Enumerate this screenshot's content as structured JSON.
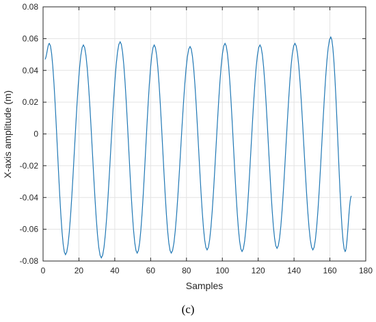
{
  "chart_data": {
    "type": "line",
    "title": "",
    "xlabel": "Samples",
    "ylabel": "X-axis amplitude (m)",
    "xlim": [
      0,
      180
    ],
    "ylim": [
      -0.08,
      0.08
    ],
    "xticks": [
      0,
      20,
      40,
      60,
      80,
      100,
      120,
      140,
      160,
      180
    ],
    "yticks": [
      -0.08,
      -0.06,
      -0.04,
      -0.02,
      0,
      0.02,
      0.04,
      0.06,
      0.08
    ],
    "ytick_labels": [
      "-0.08",
      "-0.06",
      "-0.04",
      "-0.02",
      "0",
      "0.02",
      "0.04",
      "0.06",
      "0.08"
    ],
    "grid": true,
    "series_color": "#1f77b4",
    "series": [
      {
        "name": "",
        "x": [
          1,
          3.5,
          12.5,
          22.5,
          32.5,
          43,
          52.5,
          62,
          71.5,
          82,
          91.5,
          101.5,
          111,
          121,
          130.5,
          140.5,
          150.5,
          160.5,
          168.5,
          172
        ],
        "y": [
          0.047,
          0.057,
          -0.076,
          0.056,
          -0.078,
          0.058,
          -0.075,
          0.056,
          -0.075,
          0.055,
          -0.073,
          0.057,
          -0.074,
          0.056,
          -0.072,
          0.057,
          -0.073,
          0.061,
          -0.074,
          -0.039
        ]
      }
    ]
  },
  "caption": "(c)"
}
